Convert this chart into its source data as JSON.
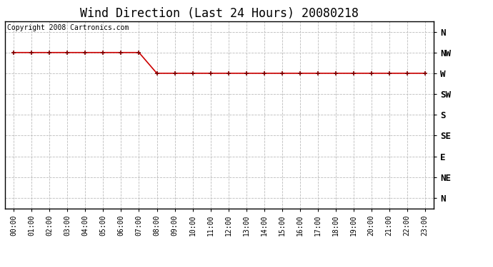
{
  "title": "Wind Direction (Last 24 Hours) 20080218",
  "copyright_text": "Copyright 2008 Cartronics.com",
  "x_labels": [
    "00:00",
    "01:00",
    "02:00",
    "03:00",
    "04:00",
    "05:00",
    "06:00",
    "07:00",
    "08:00",
    "09:00",
    "10:00",
    "11:00",
    "12:00",
    "13:00",
    "14:00",
    "15:00",
    "16:00",
    "17:00",
    "18:00",
    "19:00",
    "20:00",
    "21:00",
    "22:00",
    "23:00"
  ],
  "y_labels": [
    "N",
    "NW",
    "W",
    "SW",
    "S",
    "SE",
    "E",
    "NE",
    "N"
  ],
  "y_tick_positions": [
    8,
    7,
    6,
    5,
    4,
    3,
    2,
    1,
    0
  ],
  "wind_data_hours": [
    0,
    1,
    2,
    3,
    4,
    5,
    6,
    7,
    8,
    9,
    10,
    11,
    12,
    13,
    14,
    15,
    16,
    17,
    18,
    19,
    20,
    21,
    22,
    23
  ],
  "wind_data_values": [
    7,
    7,
    7,
    7,
    7,
    7,
    7,
    7,
    6,
    6,
    6,
    6,
    6,
    6,
    6,
    6,
    6,
    6,
    6,
    6,
    6,
    6,
    6,
    6
  ],
  "line_color": "#cc0000",
  "marker_color": "#800000",
  "background_color": "#ffffff",
  "grid_color": "#bbbbbb",
  "title_fontsize": 12,
  "tick_fontsize": 7,
  "copyright_fontsize": 7
}
